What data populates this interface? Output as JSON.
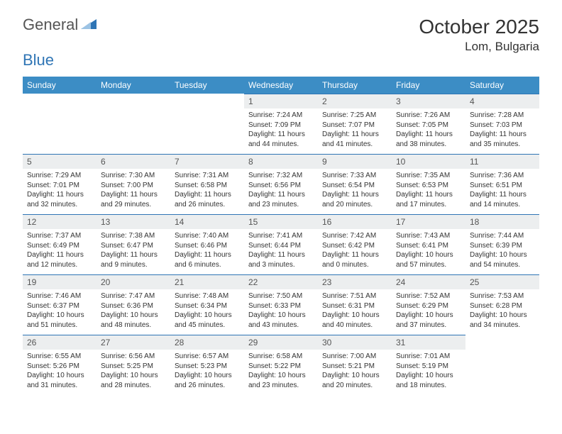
{
  "logo": {
    "part1": "General",
    "part2": "Blue"
  },
  "title": {
    "month": "October 2025",
    "location": "Lom, Bulgaria"
  },
  "colors": {
    "headerBg": "#3c8dc5",
    "dayBg": "#eceeef",
    "brand": "#2f75b5"
  },
  "weekdays": [
    "Sunday",
    "Monday",
    "Tuesday",
    "Wednesday",
    "Thursday",
    "Friday",
    "Saturday"
  ],
  "weeks": [
    [
      {
        "n": "",
        "sr": "",
        "ss": "",
        "dl": ""
      },
      {
        "n": "",
        "sr": "",
        "ss": "",
        "dl": ""
      },
      {
        "n": "",
        "sr": "",
        "ss": "",
        "dl": ""
      },
      {
        "n": "1",
        "sr": "Sunrise: 7:24 AM",
        "ss": "Sunset: 7:09 PM",
        "dl": "Daylight: 11 hours and 44 minutes."
      },
      {
        "n": "2",
        "sr": "Sunrise: 7:25 AM",
        "ss": "Sunset: 7:07 PM",
        "dl": "Daylight: 11 hours and 41 minutes."
      },
      {
        "n": "3",
        "sr": "Sunrise: 7:26 AM",
        "ss": "Sunset: 7:05 PM",
        "dl": "Daylight: 11 hours and 38 minutes."
      },
      {
        "n": "4",
        "sr": "Sunrise: 7:28 AM",
        "ss": "Sunset: 7:03 PM",
        "dl": "Daylight: 11 hours and 35 minutes."
      }
    ],
    [
      {
        "n": "5",
        "sr": "Sunrise: 7:29 AM",
        "ss": "Sunset: 7:01 PM",
        "dl": "Daylight: 11 hours and 32 minutes."
      },
      {
        "n": "6",
        "sr": "Sunrise: 7:30 AM",
        "ss": "Sunset: 7:00 PM",
        "dl": "Daylight: 11 hours and 29 minutes."
      },
      {
        "n": "7",
        "sr": "Sunrise: 7:31 AM",
        "ss": "Sunset: 6:58 PM",
        "dl": "Daylight: 11 hours and 26 minutes."
      },
      {
        "n": "8",
        "sr": "Sunrise: 7:32 AM",
        "ss": "Sunset: 6:56 PM",
        "dl": "Daylight: 11 hours and 23 minutes."
      },
      {
        "n": "9",
        "sr": "Sunrise: 7:33 AM",
        "ss": "Sunset: 6:54 PM",
        "dl": "Daylight: 11 hours and 20 minutes."
      },
      {
        "n": "10",
        "sr": "Sunrise: 7:35 AM",
        "ss": "Sunset: 6:53 PM",
        "dl": "Daylight: 11 hours and 17 minutes."
      },
      {
        "n": "11",
        "sr": "Sunrise: 7:36 AM",
        "ss": "Sunset: 6:51 PM",
        "dl": "Daylight: 11 hours and 14 minutes."
      }
    ],
    [
      {
        "n": "12",
        "sr": "Sunrise: 7:37 AM",
        "ss": "Sunset: 6:49 PM",
        "dl": "Daylight: 11 hours and 12 minutes."
      },
      {
        "n": "13",
        "sr": "Sunrise: 7:38 AM",
        "ss": "Sunset: 6:47 PM",
        "dl": "Daylight: 11 hours and 9 minutes."
      },
      {
        "n": "14",
        "sr": "Sunrise: 7:40 AM",
        "ss": "Sunset: 6:46 PM",
        "dl": "Daylight: 11 hours and 6 minutes."
      },
      {
        "n": "15",
        "sr": "Sunrise: 7:41 AM",
        "ss": "Sunset: 6:44 PM",
        "dl": "Daylight: 11 hours and 3 minutes."
      },
      {
        "n": "16",
        "sr": "Sunrise: 7:42 AM",
        "ss": "Sunset: 6:42 PM",
        "dl": "Daylight: 11 hours and 0 minutes."
      },
      {
        "n": "17",
        "sr": "Sunrise: 7:43 AM",
        "ss": "Sunset: 6:41 PM",
        "dl": "Daylight: 10 hours and 57 minutes."
      },
      {
        "n": "18",
        "sr": "Sunrise: 7:44 AM",
        "ss": "Sunset: 6:39 PM",
        "dl": "Daylight: 10 hours and 54 minutes."
      }
    ],
    [
      {
        "n": "19",
        "sr": "Sunrise: 7:46 AM",
        "ss": "Sunset: 6:37 PM",
        "dl": "Daylight: 10 hours and 51 minutes."
      },
      {
        "n": "20",
        "sr": "Sunrise: 7:47 AM",
        "ss": "Sunset: 6:36 PM",
        "dl": "Daylight: 10 hours and 48 minutes."
      },
      {
        "n": "21",
        "sr": "Sunrise: 7:48 AM",
        "ss": "Sunset: 6:34 PM",
        "dl": "Daylight: 10 hours and 45 minutes."
      },
      {
        "n": "22",
        "sr": "Sunrise: 7:50 AM",
        "ss": "Sunset: 6:33 PM",
        "dl": "Daylight: 10 hours and 43 minutes."
      },
      {
        "n": "23",
        "sr": "Sunrise: 7:51 AM",
        "ss": "Sunset: 6:31 PM",
        "dl": "Daylight: 10 hours and 40 minutes."
      },
      {
        "n": "24",
        "sr": "Sunrise: 7:52 AM",
        "ss": "Sunset: 6:29 PM",
        "dl": "Daylight: 10 hours and 37 minutes."
      },
      {
        "n": "25",
        "sr": "Sunrise: 7:53 AM",
        "ss": "Sunset: 6:28 PM",
        "dl": "Daylight: 10 hours and 34 minutes."
      }
    ],
    [
      {
        "n": "26",
        "sr": "Sunrise: 6:55 AM",
        "ss": "Sunset: 5:26 PM",
        "dl": "Daylight: 10 hours and 31 minutes."
      },
      {
        "n": "27",
        "sr": "Sunrise: 6:56 AM",
        "ss": "Sunset: 5:25 PM",
        "dl": "Daylight: 10 hours and 28 minutes."
      },
      {
        "n": "28",
        "sr": "Sunrise: 6:57 AM",
        "ss": "Sunset: 5:23 PM",
        "dl": "Daylight: 10 hours and 26 minutes."
      },
      {
        "n": "29",
        "sr": "Sunrise: 6:58 AM",
        "ss": "Sunset: 5:22 PM",
        "dl": "Daylight: 10 hours and 23 minutes."
      },
      {
        "n": "30",
        "sr": "Sunrise: 7:00 AM",
        "ss": "Sunset: 5:21 PM",
        "dl": "Daylight: 10 hours and 20 minutes."
      },
      {
        "n": "31",
        "sr": "Sunrise: 7:01 AM",
        "ss": "Sunset: 5:19 PM",
        "dl": "Daylight: 10 hours and 18 minutes."
      },
      {
        "n": "",
        "sr": "",
        "ss": "",
        "dl": ""
      }
    ]
  ]
}
